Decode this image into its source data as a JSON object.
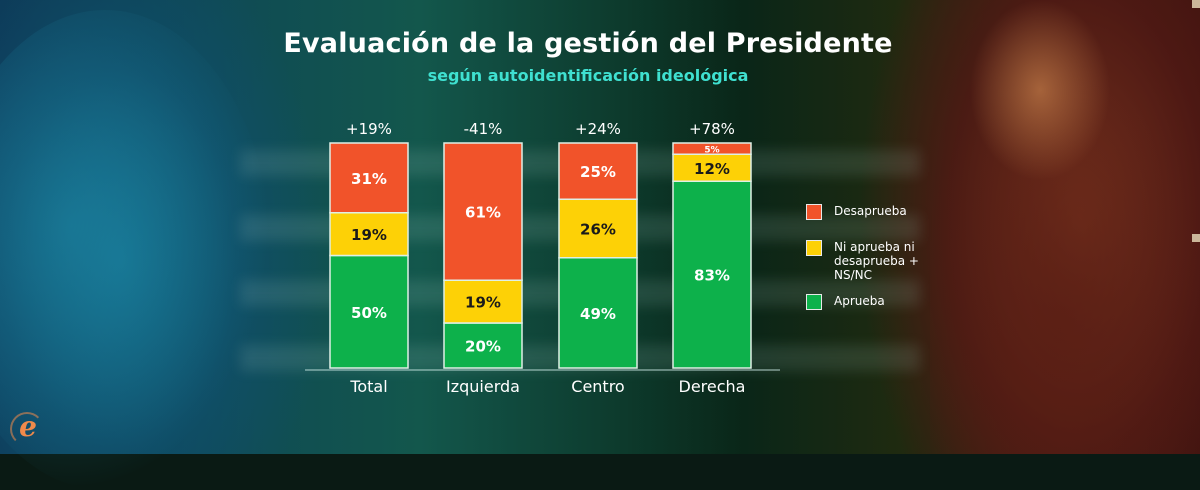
{
  "header": {
    "title": "Evaluación de la gestión del Presidente",
    "subtitle": "según autoidentificación ideológica"
  },
  "colors": {
    "desaprueba": "#f1532a",
    "ni": "#fdd106",
    "aprueba": "#0db14b",
    "subtitle": "#3fe0d0"
  },
  "legend": {
    "items": [
      {
        "label_lines": [
          "Desaprueba"
        ],
        "color": "#f1532a"
      },
      {
        "label_lines": [
          "Ni aprueba ni",
          "desaprueba +",
          "NS/NC"
        ],
        "color": "#fdd106"
      },
      {
        "label_lines": [
          "Aprueba"
        ],
        "color": "#0db14b"
      }
    ]
  },
  "logo": {
    "glyph": "e",
    "icon": "eco-logo-icon"
  },
  "chart_data": {
    "type": "bar",
    "stacked": true,
    "title": "Evaluación de la gestión del Presidente",
    "subtitle": "según autoidentificación ideológica",
    "categories": [
      "Total",
      "Izquierda",
      "Centro",
      "Derecha"
    ],
    "net_labels": [
      "+19%",
      "-41%",
      "+24%",
      "+78%"
    ],
    "series": [
      {
        "name": "Aprueba",
        "values": [
          50,
          20,
          49,
          83
        ],
        "color": "#0db14b",
        "label_color": "#ffffff"
      },
      {
        "name": "Ni aprueba ni desaprueba + NS/NC",
        "values": [
          19,
          19,
          26,
          12
        ],
        "color": "#fdd106",
        "label_color": "#1a1a1a"
      },
      {
        "name": "Desaprueba",
        "values": [
          31,
          61,
          25,
          5
        ],
        "color": "#f1532a",
        "label_color": "#ffffff"
      }
    ],
    "value_suffix": "%",
    "ylim": [
      0,
      100
    ],
    "grid": false,
    "legend_position": "right",
    "xlabel": "",
    "ylabel": ""
  }
}
